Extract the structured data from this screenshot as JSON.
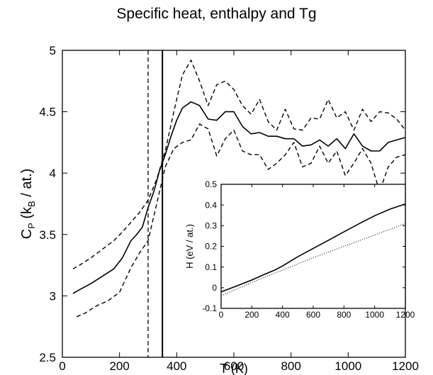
{
  "title": "Specific heat, enthalpy and Tg",
  "colors": {
    "axis": "#000000",
    "line": "#000000"
  },
  "chart_data": [
    {
      "type": "line",
      "title": "Specific heat, enthalpy and Tg",
      "xlabel": "T (K)",
      "ylabel": "C_P (k_B / at.)",
      "ylabel_parts": [
        "C",
        "P",
        " (k",
        "B",
        " / at.)"
      ],
      "xlim": [
        0,
        1200
      ],
      "ylim": [
        2.5,
        5
      ],
      "xticks": [
        0,
        200,
        400,
        600,
        800,
        1000,
        1200
      ],
      "yticks": [
        2.5,
        3,
        3.5,
        4,
        4.5,
        5
      ],
      "grid": false,
      "vlines": [
        {
          "x": 300,
          "style": "dashed"
        },
        {
          "x": 350,
          "style": "solid"
        }
      ],
      "series": [
        {
          "style": "solid",
          "x": [
            37,
            60,
            100,
            140,
            180,
            210,
            240,
            260,
            280,
            300,
            320,
            340,
            360,
            380,
            400,
            420,
            450,
            480,
            510,
            540,
            570,
            600,
            630,
            660,
            690,
            720,
            750,
            780,
            810,
            840,
            870,
            900,
            930,
            960,
            990,
            1020,
            1050,
            1080,
            1110,
            1140,
            1170,
            1200
          ],
          "y": [
            3.02,
            3.05,
            3.1,
            3.16,
            3.22,
            3.31,
            3.45,
            3.5,
            3.56,
            3.72,
            3.85,
            4.02,
            4.15,
            4.3,
            4.43,
            4.53,
            4.58,
            4.55,
            4.44,
            4.43,
            4.5,
            4.5,
            4.38,
            4.32,
            4.33,
            4.3,
            4.3,
            4.28,
            4.28,
            4.22,
            4.23,
            4.27,
            4.22,
            4.28,
            4.2,
            4.32,
            4.22,
            4.18,
            4.18,
            4.25,
            4.27,
            4.29
          ]
        },
        {
          "style": "dashed",
          "x": [
            37,
            60,
            100,
            140,
            180,
            210,
            240,
            270,
            300,
            330,
            360,
            390,
            420,
            450,
            480,
            510,
            540,
            570,
            600,
            630,
            660,
            690,
            720,
            750,
            780,
            810,
            840,
            870,
            900,
            930,
            960,
            990,
            1020,
            1050,
            1080,
            1110,
            1140,
            1170,
            1200
          ],
          "y": [
            3.22,
            3.25,
            3.31,
            3.38,
            3.45,
            3.52,
            3.6,
            3.68,
            3.78,
            3.95,
            4.18,
            4.5,
            4.8,
            4.92,
            4.75,
            4.55,
            4.72,
            4.75,
            4.68,
            4.55,
            4.48,
            4.6,
            4.42,
            4.35,
            4.52,
            4.36,
            4.35,
            4.45,
            4.44,
            4.6,
            4.45,
            4.5,
            4.35,
            4.52,
            4.42,
            4.5,
            4.49,
            4.44,
            4.35
          ]
        },
        {
          "style": "dashed",
          "x": [
            50,
            80,
            120,
            160,
            200,
            240,
            270,
            300,
            330,
            360,
            390,
            420,
            450,
            480,
            510,
            540,
            570,
            600,
            630,
            660,
            690,
            720,
            750,
            780,
            810,
            840,
            870,
            900,
            930,
            960,
            990,
            1020,
            1050,
            1080,
            1110,
            1140,
            1170,
            1200
          ],
          "y": [
            2.83,
            2.86,
            2.92,
            2.96,
            3.03,
            3.23,
            3.35,
            3.45,
            3.75,
            4.05,
            4.2,
            4.25,
            4.27,
            4.4,
            4.36,
            4.14,
            4.28,
            4.35,
            4.18,
            4.15,
            4.15,
            4.03,
            4.08,
            4.15,
            4.25,
            4.05,
            4.08,
            4.22,
            4.08,
            4.18,
            3.98,
            4.08,
            4.2,
            4.08,
            3.85,
            4.05,
            4.13,
            4.15
          ]
        }
      ]
    },
    {
      "type": "line",
      "title": "",
      "xlabel": "",
      "ylabel": "H (eV / at.)",
      "xlim": [
        0,
        1200
      ],
      "ylim": [
        -0.1,
        0.5
      ],
      "xticks": [
        0,
        200,
        400,
        600,
        800,
        1000,
        1200
      ],
      "yticks": [
        -0.1,
        0,
        0.1,
        0.2,
        0.3,
        0.4,
        0.5
      ],
      "grid": false,
      "series": [
        {
          "style": "solid",
          "x": [
            0,
            100,
            200,
            300,
            350,
            400,
            500,
            600,
            700,
            800,
            900,
            1000,
            1100,
            1200
          ],
          "y": [
            -0.02,
            0.008,
            0.037,
            0.07,
            0.085,
            0.105,
            0.15,
            0.19,
            0.23,
            0.27,
            0.31,
            0.348,
            0.38,
            0.405
          ]
        },
        {
          "style": "dotted",
          "x": [
            0,
            200,
            400,
            600,
            800,
            1000,
            1200
          ],
          "y": [
            -0.04,
            0.025,
            0.085,
            0.145,
            0.2,
            0.255,
            0.31
          ]
        }
      ]
    }
  ]
}
